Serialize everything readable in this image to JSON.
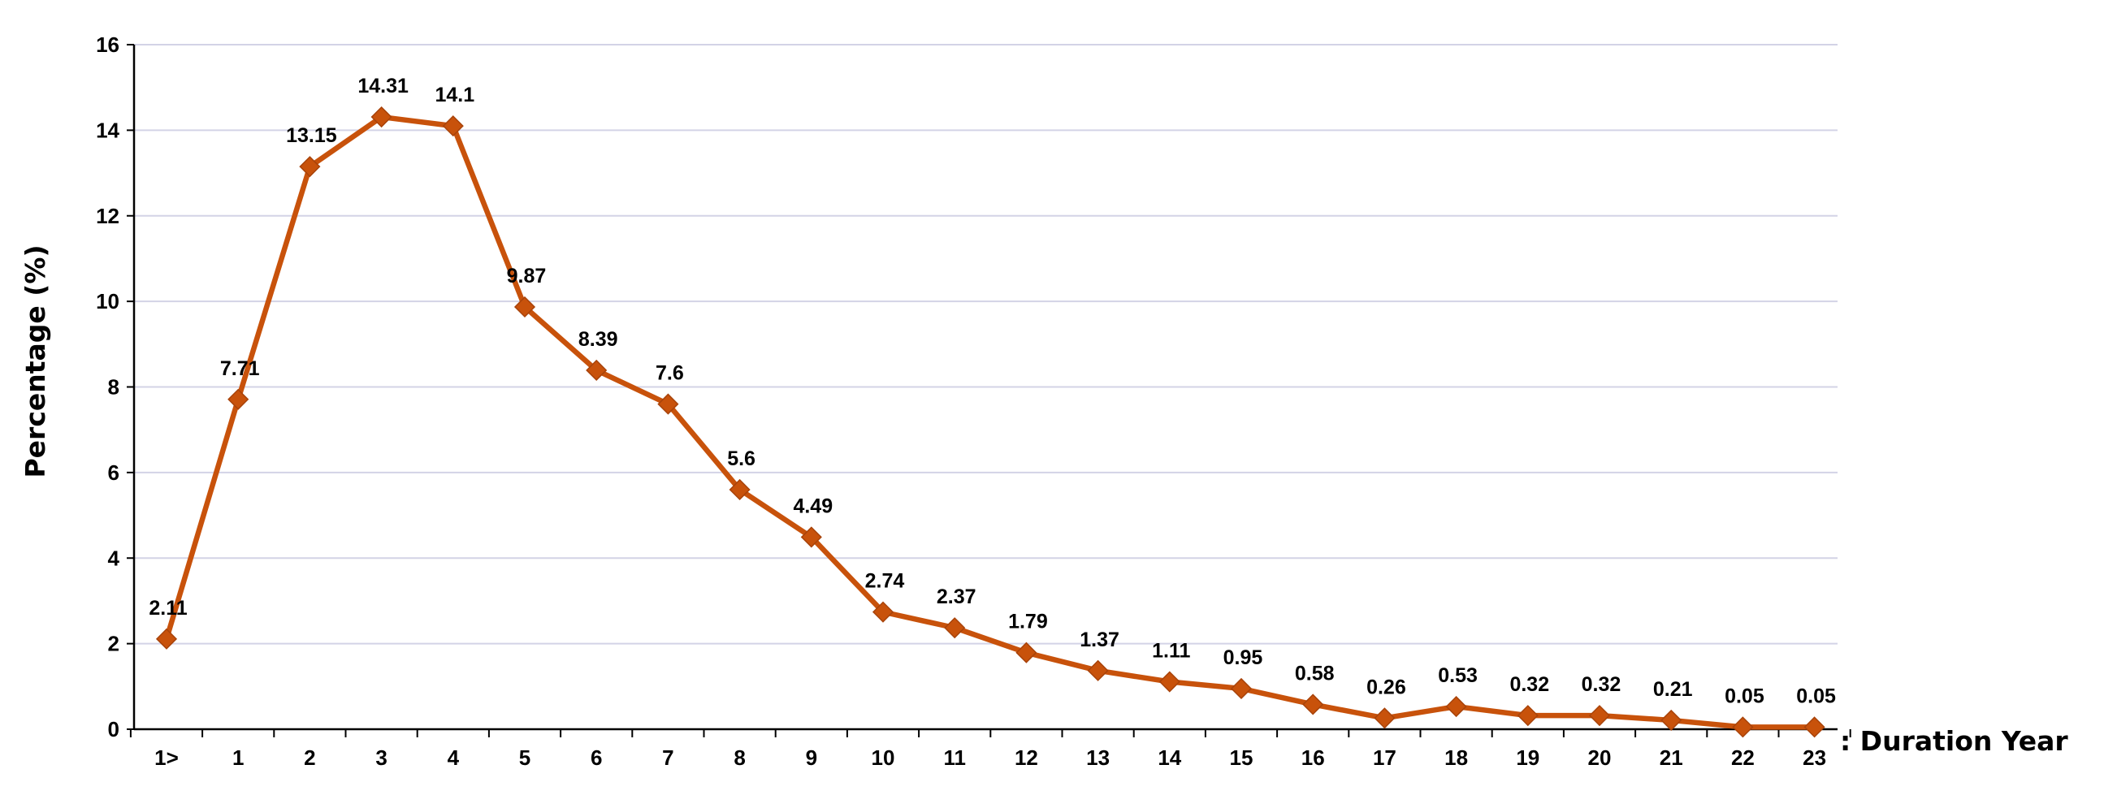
{
  "chart_data": {
    "type": "line",
    "title": "",
    "ylabel": "Percentage (%)",
    "xlabel": ": Duration Year",
    "ylim": [
      0,
      16
    ],
    "y_ticks": [
      0,
      2,
      4,
      6,
      8,
      10,
      12,
      14,
      16
    ],
    "grid": true,
    "legend": "none",
    "categories": [
      "1>",
      "1",
      "2",
      "3",
      "4",
      "5",
      "6",
      "7",
      "8",
      "9",
      "10",
      "11",
      "12",
      "13",
      "14",
      "15",
      "16",
      "17",
      "18",
      "19",
      "20",
      "21",
      "22",
      "23"
    ],
    "series": [
      {
        "values": [
          2.11,
          7.71,
          13.15,
          14.31,
          14.1,
          9.87,
          8.39,
          7.6,
          5.6,
          4.49,
          2.74,
          2.37,
          1.79,
          1.37,
          1.11,
          0.95,
          0.58,
          0.26,
          0.53,
          0.32,
          0.32,
          0.21,
          0.05,
          0.05
        ],
        "color": "#C8520B",
        "marker": "diamond"
      }
    ],
    "data_labels": [
      "2.11",
      "7.71",
      "13.15",
      "14.31",
      "14.1",
      "9.87",
      "8.39",
      "7.6",
      "5.6",
      "4.49",
      "2.74",
      "2.37",
      "1.79",
      "1.37",
      "1.11",
      "0.95",
      "0.58",
      "0.26",
      "0.53",
      "0.32",
      "0.32",
      "0.21",
      "0.05",
      "0.05"
    ]
  }
}
